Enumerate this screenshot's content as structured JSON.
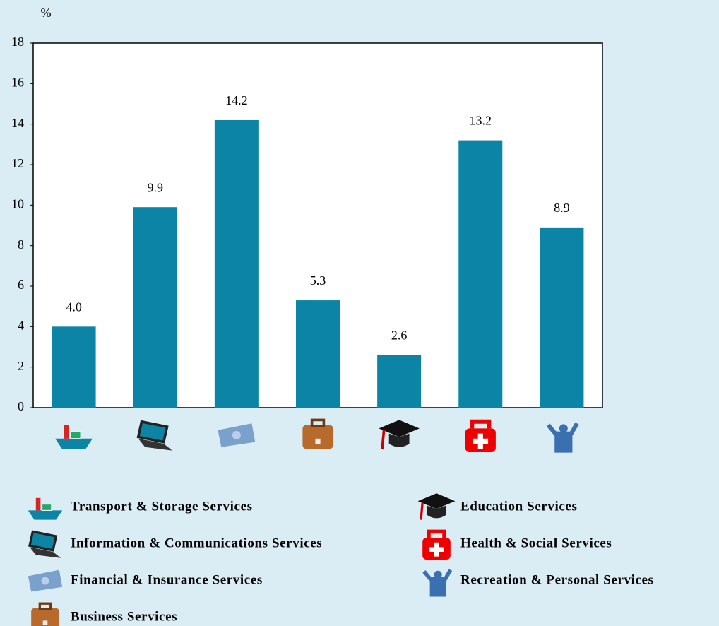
{
  "chart_data": {
    "type": "bar",
    "y_axis_label": "%",
    "categories": [
      "Transport & Storage Services",
      "Information & Communications Services",
      "Financial & Insurance Services",
      "Business Services",
      "Education Services",
      "Health & Social Services",
      "Recreation & Personal Services"
    ],
    "values": [
      4.0,
      9.9,
      14.2,
      5.3,
      2.6,
      13.2,
      8.9
    ],
    "value_labels": [
      "4.0",
      "9.9",
      "14.2",
      "5.3",
      "2.6",
      "13.2",
      "8.9"
    ],
    "color": "#0b84a5",
    "ylim": [
      0,
      18
    ],
    "yticks": [
      0,
      2,
      4,
      6,
      8,
      10,
      12,
      14,
      16,
      18
    ],
    "grid": false
  }
}
